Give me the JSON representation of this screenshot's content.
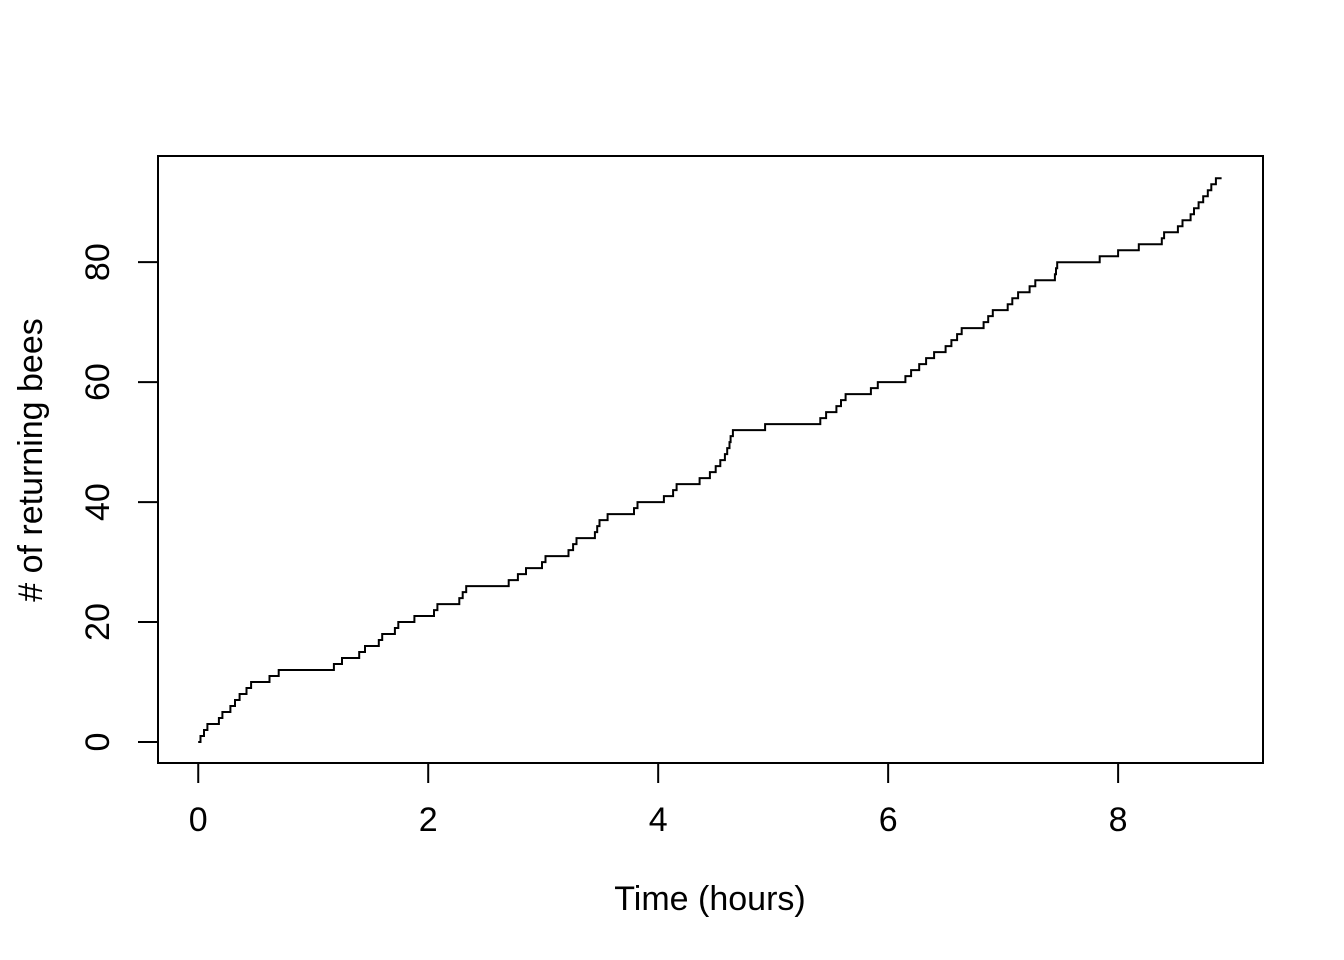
{
  "figure": {
    "background": "#ffffff",
    "foreground": "#000000"
  },
  "chart_data": {
    "type": "line",
    "subtype": "step",
    "title": "",
    "xlabel": "Time (hours)",
    "ylabel": "# of returning bees",
    "x_ticks": [
      0,
      2,
      4,
      6,
      8
    ],
    "y_ticks": [
      0,
      20,
      40,
      60,
      80
    ],
    "xlim": [
      -0.35,
      9.26
    ],
    "ylim": [
      -3.5,
      97.7
    ],
    "grid": false,
    "legend_position": "none",
    "line_color": "#000000",
    "start_point": [
      0,
      0
    ],
    "end_time": 8.9,
    "x": [
      0.02,
      0.05,
      0.08,
      0.18,
      0.21,
      0.28,
      0.32,
      0.36,
      0.42,
      0.46,
      0.62,
      0.7,
      1.18,
      1.25,
      1.4,
      1.45,
      1.57,
      1.6,
      1.71,
      1.74,
      1.88,
      2.05,
      2.08,
      2.27,
      2.3,
      2.33,
      2.7,
      2.78,
      2.85,
      2.99,
      3.02,
      3.22,
      3.26,
      3.29,
      3.45,
      3.47,
      3.49,
      3.56,
      3.79,
      3.82,
      4.05,
      4.13,
      4.16,
      4.36,
      4.45,
      4.5,
      4.54,
      4.58,
      4.6,
      4.62,
      4.63,
      4.65,
      4.93,
      5.41,
      5.46,
      5.55,
      5.59,
      5.63,
      5.85,
      5.91,
      6.15,
      6.2,
      6.27,
      6.33,
      6.4,
      6.5,
      6.55,
      6.6,
      6.64,
      6.83,
      6.87,
      6.91,
      7.04,
      7.08,
      7.13,
      7.23,
      7.28,
      7.45,
      7.46,
      7.47,
      7.84,
      8.0,
      8.18,
      8.38,
      8.4,
      8.52,
      8.56,
      8.63,
      8.66,
      8.7,
      8.74,
      8.78,
      8.81,
      8.85
    ],
    "y": [
      1,
      2,
      3,
      4,
      5,
      6,
      7,
      8,
      9,
      10,
      11,
      12,
      13,
      14,
      15,
      16,
      17,
      18,
      19,
      20,
      21,
      22,
      23,
      24,
      25,
      26,
      27,
      28,
      29,
      30,
      31,
      32,
      33,
      34,
      35,
      36,
      37,
      38,
      39,
      40,
      41,
      42,
      43,
      44,
      45,
      46,
      47,
      48,
      49,
      50,
      51,
      52,
      53,
      54,
      55,
      56,
      57,
      58,
      59,
      60,
      61,
      62,
      63,
      64,
      65,
      66,
      67,
      68,
      69,
      70,
      71,
      72,
      73,
      74,
      75,
      76,
      77,
      78,
      79,
      80,
      81,
      82,
      83,
      84,
      85,
      86,
      87,
      88,
      89,
      90,
      91,
      92,
      93,
      94
    ]
  }
}
